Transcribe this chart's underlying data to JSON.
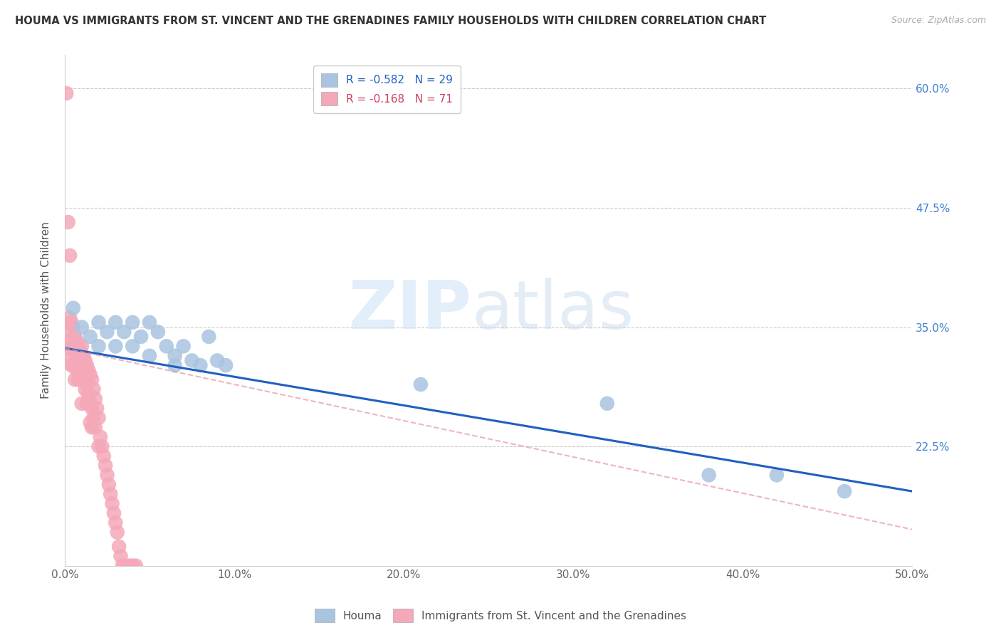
{
  "title": "HOUMA VS IMMIGRANTS FROM ST. VINCENT AND THE GRENADINES FAMILY HOUSEHOLDS WITH CHILDREN CORRELATION CHART",
  "source": "Source: ZipAtlas.com",
  "xlabel": "",
  "ylabel": "Family Households with Children",
  "xlim": [
    0.0,
    0.5
  ],
  "ylim": [
    0.1,
    0.635
  ],
  "xticks": [
    0.0,
    0.1,
    0.2,
    0.3,
    0.4,
    0.5
  ],
  "xticklabels": [
    "0.0%",
    "10.0%",
    "20.0%",
    "30.0%",
    "40.0%",
    "50.0%"
  ],
  "ytick_positions": [
    0.225,
    0.35,
    0.475,
    0.6
  ],
  "yticklabels": [
    "22.5%",
    "35.0%",
    "47.5%",
    "60.0%"
  ],
  "legend_blue_r": "-0.582",
  "legend_blue_n": "29",
  "legend_pink_r": "-0.168",
  "legend_pink_n": "71",
  "blue_color": "#a8c4e0",
  "pink_color": "#f4a8b8",
  "blue_line_color": "#2060c0",
  "pink_line_color": "#e896a8",
  "watermark_zip": "ZIP",
  "watermark_atlas": "atlas",
  "blue_dots_x": [
    0.005,
    0.01,
    0.015,
    0.02,
    0.02,
    0.025,
    0.03,
    0.03,
    0.035,
    0.04,
    0.04,
    0.045,
    0.05,
    0.05,
    0.055,
    0.06,
    0.065,
    0.065,
    0.07,
    0.075,
    0.08,
    0.085,
    0.09,
    0.095,
    0.21,
    0.32,
    0.38,
    0.42,
    0.46
  ],
  "blue_dots_y": [
    0.37,
    0.35,
    0.34,
    0.355,
    0.33,
    0.345,
    0.355,
    0.33,
    0.345,
    0.355,
    0.33,
    0.34,
    0.355,
    0.32,
    0.345,
    0.33,
    0.32,
    0.31,
    0.33,
    0.315,
    0.31,
    0.34,
    0.315,
    0.31,
    0.29,
    0.27,
    0.195,
    0.195,
    0.178
  ],
  "pink_dots_x": [
    0.001,
    0.001,
    0.002,
    0.002,
    0.003,
    0.003,
    0.003,
    0.004,
    0.004,
    0.004,
    0.005,
    0.005,
    0.005,
    0.005,
    0.006,
    0.006,
    0.006,
    0.006,
    0.007,
    0.007,
    0.007,
    0.008,
    0.008,
    0.008,
    0.009,
    0.009,
    0.01,
    0.01,
    0.01,
    0.01,
    0.011,
    0.011,
    0.012,
    0.012,
    0.013,
    0.013,
    0.013,
    0.014,
    0.014,
    0.015,
    0.015,
    0.015,
    0.016,
    0.016,
    0.016,
    0.017,
    0.017,
    0.018,
    0.018,
    0.019,
    0.02,
    0.02,
    0.021,
    0.022,
    0.023,
    0.024,
    0.025,
    0.026,
    0.027,
    0.028,
    0.029,
    0.03,
    0.031,
    0.032,
    0.033,
    0.034,
    0.035,
    0.036,
    0.038,
    0.04,
    0.042
  ],
  "pink_dots_y": [
    0.595,
    0.345,
    0.46,
    0.335,
    0.425,
    0.36,
    0.32,
    0.355,
    0.33,
    0.31,
    0.35,
    0.33,
    0.325,
    0.31,
    0.34,
    0.325,
    0.31,
    0.295,
    0.335,
    0.32,
    0.305,
    0.33,
    0.315,
    0.295,
    0.325,
    0.305,
    0.33,
    0.315,
    0.3,
    0.27,
    0.32,
    0.295,
    0.315,
    0.285,
    0.31,
    0.29,
    0.27,
    0.305,
    0.28,
    0.3,
    0.27,
    0.25,
    0.295,
    0.265,
    0.245,
    0.285,
    0.255,
    0.275,
    0.245,
    0.265,
    0.255,
    0.225,
    0.235,
    0.225,
    0.215,
    0.205,
    0.195,
    0.185,
    0.175,
    0.165,
    0.155,
    0.145,
    0.135,
    0.12,
    0.11,
    0.1,
    0.1,
    0.1,
    0.1,
    0.1,
    0.1
  ],
  "blue_line_x": [
    0.0,
    0.5
  ],
  "blue_line_y": [
    0.328,
    0.178
  ],
  "pink_line_x": [
    0.0,
    0.5
  ],
  "pink_line_y": [
    0.328,
    0.138
  ]
}
